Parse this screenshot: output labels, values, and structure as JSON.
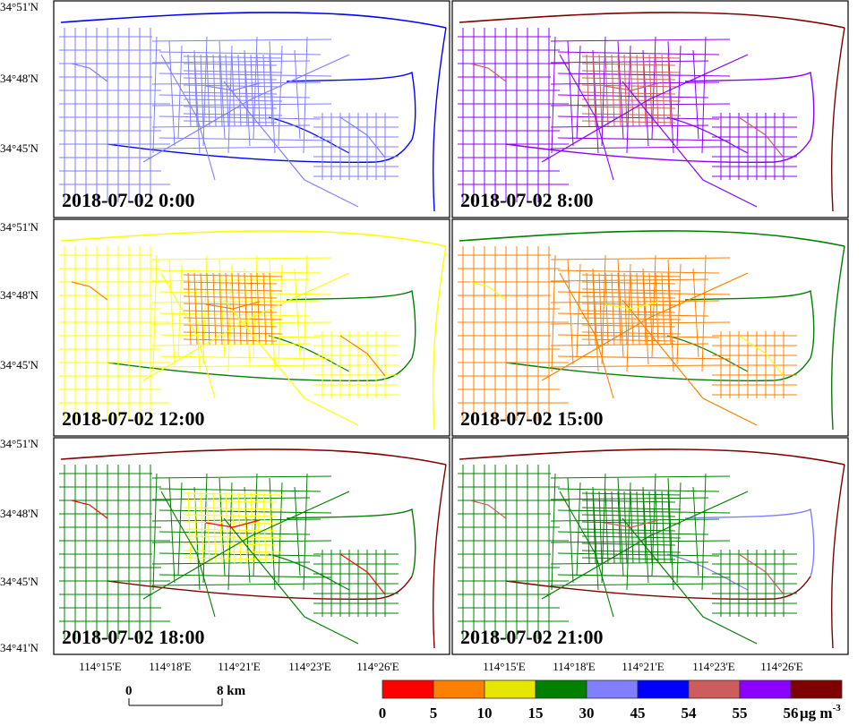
{
  "figure": {
    "lat_labels": [
      "34°51'N",
      "34°48'N",
      "34°45'N",
      "34°41'N"
    ],
    "lon_labels": [
      "114°15'E",
      "114°18'E",
      "114°21'E",
      "114°23'E",
      "114°26'E"
    ]
  },
  "panels": [
    {
      "title": "2018-07-02 0:00",
      "main": "#7f7fff",
      "outer": "#0000ff",
      "core": "#7f7fff",
      "east": "#0000ff",
      "ring": "#0000ff",
      "accent": "#7f7fff"
    },
    {
      "title": "2018-07-02 8:00",
      "main": "#8b00ff",
      "outer": "#7f0000",
      "core": "#cd5c5c",
      "east": "#8b00ff",
      "ring": "#8b00ff",
      "accent": "#cd5c5c"
    },
    {
      "title": "2018-07-02 12:00",
      "main": "#ffff00",
      "outer": "#ffff00",
      "core": "#ff8000",
      "east": "#008000",
      "ring": "#008000",
      "accent": "#ff8000"
    },
    {
      "title": "2018-07-02 15:00",
      "main": "#ff8000",
      "outer": "#008000",
      "core": "#ff8000",
      "east": "#008000",
      "ring": "#008000",
      "accent": "#ffff00"
    },
    {
      "title": "2018-07-02 18:00",
      "main": "#008000",
      "outer": "#7f0000",
      "core": "#ffff00",
      "east": "#008000",
      "ring": "#7f0000",
      "accent": "#ff0000"
    },
    {
      "title": "2018-07-02 21:00",
      "main": "#008000",
      "outer": "#7f0000",
      "core": "#008000",
      "east": "#7f7fff",
      "ring": "#7f0000",
      "accent": "#cd5c5c"
    }
  ],
  "scale_bar": {
    "start": "0",
    "end": "8 km"
  },
  "legend": {
    "unit": "μg m",
    "unit_sup": "-3",
    "breaks": [
      "0",
      "5",
      "10",
      "15",
      "30",
      "45",
      "54",
      "55",
      "56"
    ],
    "colors": [
      "#ff0000",
      "#ff8000",
      "#e6e600",
      "#008000",
      "#7f7fff",
      "#0000ff",
      "#cd5c5c",
      "#8b00ff",
      "#7f0000"
    ]
  }
}
